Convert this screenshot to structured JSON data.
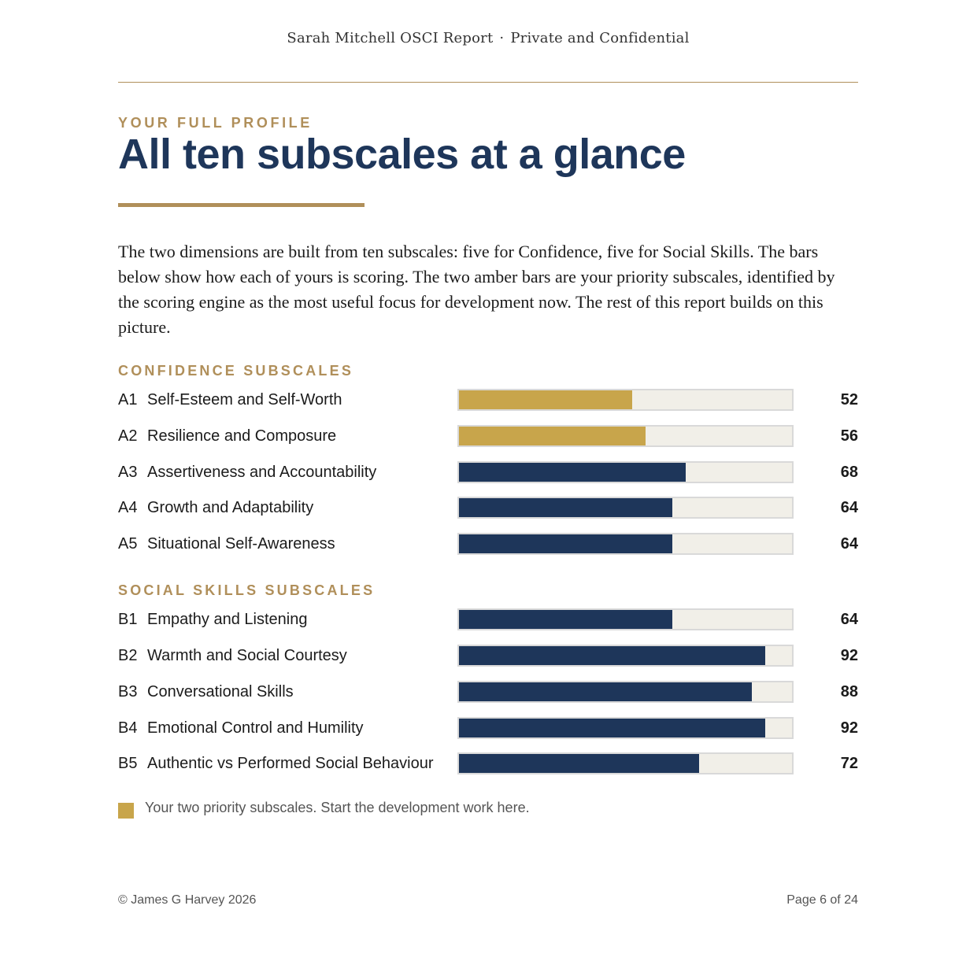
{
  "header": {
    "report_title": "Sarah Mitchell OSCI Report",
    "separator": "·",
    "confidentiality": "Private and Confidential"
  },
  "eyebrow": "YOUR FULL PROFILE",
  "title": "All ten subscales at a glance",
  "intro": "The two dimensions are built from ten subscales: five for Confidence, five for Social Skills. The bars below show how each of yours is scoring. The two amber bars are your priority subscales, identified by the scoring engine as the most useful focus for development now. The rest of this report builds on this picture.",
  "colors": {
    "accent": "#b08f5a",
    "priority_bar": "#c8a54b",
    "standard_bar": "#1e365a",
    "track": "#f1efe8",
    "title": "#1e365a"
  },
  "confidence": {
    "heading": "CONFIDENCE SUBSCALES",
    "items": [
      {
        "code": "A1",
        "label": "Self-Esteem and Self-Worth",
        "score": "52",
        "value": 52,
        "priority": true
      },
      {
        "code": "A2",
        "label": "Resilience and Composure",
        "score": "56",
        "value": 56,
        "priority": true
      },
      {
        "code": "A3",
        "label": "Assertiveness and Accountability",
        "score": "68",
        "value": 68,
        "priority": false
      },
      {
        "code": "A4",
        "label": "Growth and Adaptability",
        "score": "64",
        "value": 64,
        "priority": false
      },
      {
        "code": "A5",
        "label": "Situational Self-Awareness",
        "score": "64",
        "value": 64,
        "priority": false
      }
    ]
  },
  "social": {
    "heading": "SOCIAL SKILLS SUBSCALES",
    "items": [
      {
        "code": "B1",
        "label": "Empathy and Listening",
        "score": "64",
        "value": 64,
        "priority": false
      },
      {
        "code": "B2",
        "label": "Warmth and Social Courtesy",
        "score": "92",
        "value": 92,
        "priority": false
      },
      {
        "code": "B3",
        "label": "Conversational Skills",
        "score": "88",
        "value": 88,
        "priority": false
      },
      {
        "code": "B4",
        "label": "Emotional Control and Humility",
        "score": "92",
        "value": 92,
        "priority": false
      },
      {
        "code": "B5",
        "label": "Authentic vs Performed Social Behaviour",
        "score": "72",
        "value": 72,
        "priority": false
      }
    ]
  },
  "legend": {
    "text": "Your two priority subscales. Start the development work here."
  },
  "footer": {
    "copyright": "© James G Harvey 2026",
    "page": "Page 6 of 24"
  }
}
